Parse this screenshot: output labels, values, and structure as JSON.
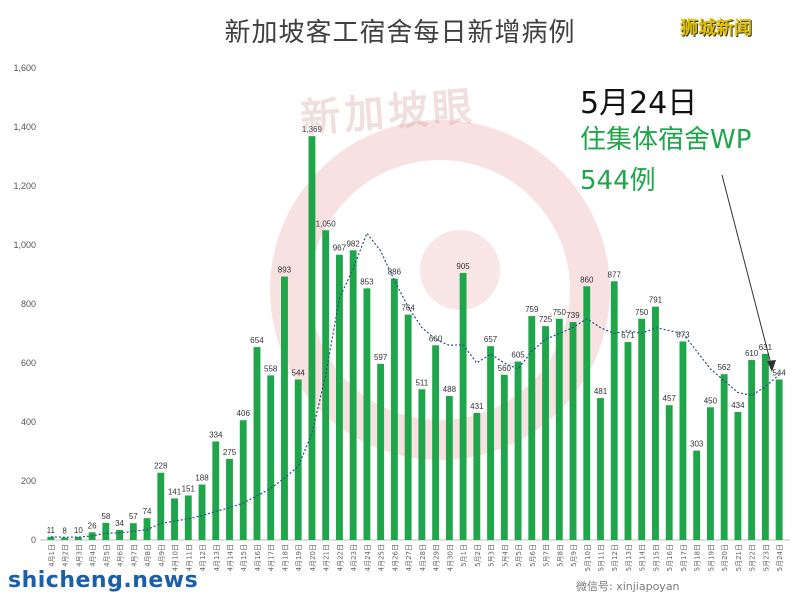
{
  "header": {
    "title": "新加坡客工宿舍每日新增病例",
    "brand": "狮城新闻"
  },
  "watermark": {
    "text": "新加坡眼",
    "circle_color": "#e89a9a"
  },
  "annotation": {
    "date": "5月24日",
    "line2": "住集体宿舍WP",
    "line3": "544例"
  },
  "footer": {
    "site": "shicheng.news",
    "weixin": "微信号: xinjiapoyan"
  },
  "colors": {
    "bar": "#1fa64a",
    "trend": "#2a4a8c",
    "axis_text": "#555555",
    "title": "#404040",
    "annotation_green": "#1fa64a"
  },
  "chart_data": {
    "type": "bar",
    "title": "新加坡客工宿舍每日新增病例",
    "ylim": [
      0,
      1600
    ],
    "y_ticks": [
      0,
      200,
      400,
      600,
      800,
      1000,
      1200,
      1400,
      1600
    ],
    "y_tick_labels": [
      "0",
      "200",
      "400",
      "600",
      "800",
      "1,000",
      "1,200",
      "1,400",
      "1,600"
    ],
    "grid": false,
    "categories": [
      "4月1日",
      "4月2日",
      "4月3日",
      "4月4日",
      "4月5日",
      "4月6日",
      "4月7日",
      "4月8日",
      "4月9日",
      "4月10日",
      "4月11日",
      "4月12日",
      "4月13日",
      "4月14日",
      "4月15日",
      "4月16日",
      "4月17日",
      "4月18日",
      "4月19日",
      "4月20日",
      "4月21日",
      "4月22日",
      "4月23日",
      "4月24日",
      "4月25日",
      "4月26日",
      "4月27日",
      "4月28日",
      "4月29日",
      "4月30日",
      "5月1日",
      "5月2日",
      "5月3日",
      "5月4日",
      "5月5日",
      "5月6日",
      "5月7日",
      "5月8日",
      "5月9日",
      "5月10日",
      "5月11日",
      "5月12日",
      "5月13日",
      "5月14日",
      "5月15日",
      "5月16日",
      "5月17日",
      "5月18日",
      "5月19日",
      "5月20日",
      "5月21日",
      "5月22日",
      "5月23日",
      "5月24日"
    ],
    "values": [
      11,
      8,
      10,
      26,
      58,
      34,
      57,
      74,
      228,
      141,
      151,
      188,
      334,
      275,
      406,
      654,
      558,
      893,
      544,
      1369,
      1050,
      967,
      982,
      853,
      597,
      886,
      764,
      511,
      660,
      488,
      905,
      431,
      657,
      560,
      605,
      759,
      725,
      750,
      739,
      860,
      481,
      877,
      671,
      750,
      791,
      457,
      673,
      303,
      450,
      562,
      434,
      610,
      631,
      544
    ],
    "labels": [
      "11",
      "8",
      "10",
      "26",
      "58",
      "34",
      "57",
      "74",
      "228",
      "141",
      "151",
      "188",
      "334",
      "275",
      "406",
      "654",
      "558",
      "893",
      "544",
      "1,369",
      "1,050",
      "967",
      "982",
      "853",
      "597",
      "886",
      "764",
      "511",
      "660",
      "488",
      "905",
      "431",
      "657",
      "560",
      "605",
      "759",
      "725",
      "750",
      "739",
      "860",
      "481",
      "877",
      "671",
      "750",
      "791",
      "457",
      "673",
      "303",
      "450",
      "562",
      "434",
      "610",
      "631",
      "544"
    ],
    "trend": [
      11,
      9.5,
      9.7,
      13.8,
      22.6,
      24.5,
      29,
      35,
      56,
      64,
      72,
      83,
      97,
      110,
      125,
      150,
      175,
      210,
      250,
      360,
      560,
      820,
      920,
      1040,
      980,
      880,
      790,
      720,
      680,
      660,
      662,
      600,
      630,
      600,
      580,
      640,
      680,
      700,
      720,
      750,
      720,
      700,
      710,
      700,
      720,
      710,
      700,
      640,
      580,
      540,
      500,
      490,
      520,
      560
    ]
  }
}
